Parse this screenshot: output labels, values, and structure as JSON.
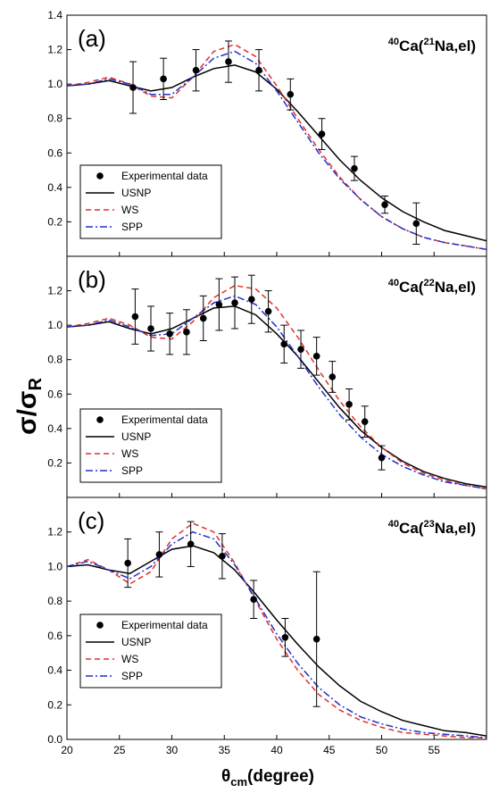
{
  "figure": {
    "ylabel": "σ/σR",
    "xlabel": "θcm(degree)"
  },
  "chart_data": [
    {
      "type": "line",
      "panel_label": "(a)",
      "title": "40Ca(21Na,el)",
      "xlim": [
        20,
        60
      ],
      "ylim": [
        0.0,
        1.4
      ],
      "xticks": [
        20,
        25,
        30,
        35,
        40,
        45,
        50,
        55
      ],
      "yticks": [
        0.2,
        0.4,
        0.6,
        0.8,
        1.0,
        1.2,
        1.4
      ],
      "legend": [
        "Experimental data",
        "USNP",
        "WS",
        "SPP"
      ],
      "experimental": {
        "name": "Experimental data",
        "x": [
          26.3,
          29.2,
          32.3,
          35.4,
          38.3,
          41.3,
          44.3,
          47.4,
          50.3,
          53.3
        ],
        "y": [
          0.98,
          1.03,
          1.08,
          1.13,
          1.08,
          0.94,
          0.71,
          0.51,
          0.3,
          0.19
        ],
        "err": [
          0.15,
          0.12,
          0.12,
          0.12,
          0.12,
          0.09,
          0.09,
          0.07,
          0.05,
          0.12
        ]
      },
      "series": [
        {
          "name": "USNP",
          "color": "#000000",
          "style": "solid",
          "x": [
            20,
            22,
            24,
            26,
            28,
            30,
            32,
            34,
            36,
            38,
            40,
            42,
            44,
            46,
            48,
            50,
            52,
            54,
            56,
            58,
            60
          ],
          "y": [
            0.99,
            1.0,
            1.02,
            0.99,
            0.96,
            0.98,
            1.04,
            1.09,
            1.11,
            1.07,
            0.97,
            0.84,
            0.7,
            0.56,
            0.44,
            0.34,
            0.26,
            0.2,
            0.15,
            0.12,
            0.09
          ]
        },
        {
          "name": "WS",
          "color": "#e0302a",
          "style": "dash",
          "x": [
            20,
            22,
            24,
            26,
            28,
            30,
            32,
            34,
            36,
            38,
            40,
            42,
            44,
            46,
            48,
            50,
            52,
            54,
            56,
            58,
            60
          ],
          "y": [
            0.99,
            1.01,
            1.04,
            1.0,
            0.93,
            0.92,
            1.04,
            1.19,
            1.23,
            1.16,
            0.99,
            0.8,
            0.62,
            0.46,
            0.33,
            0.23,
            0.16,
            0.11,
            0.08,
            0.06,
            0.04
          ]
        },
        {
          "name": "SPP",
          "color": "#2230c8",
          "style": "dashdot",
          "x": [
            20,
            22,
            24,
            26,
            28,
            30,
            32,
            34,
            36,
            38,
            40,
            42,
            44,
            46,
            48,
            50,
            52,
            54,
            56,
            58,
            60
          ],
          "y": [
            0.99,
            1.0,
            1.03,
            1.0,
            0.94,
            0.94,
            1.04,
            1.15,
            1.19,
            1.12,
            0.96,
            0.78,
            0.6,
            0.45,
            0.33,
            0.23,
            0.16,
            0.11,
            0.08,
            0.06,
            0.04
          ]
        }
      ]
    },
    {
      "type": "line",
      "panel_label": "(b)",
      "title": "40Ca(22Na,el)",
      "xlim": [
        20,
        60
      ],
      "ylim": [
        0.0,
        1.4
      ],
      "xticks": [
        20,
        25,
        30,
        35,
        40,
        45,
        50,
        55
      ],
      "yticks": [
        0.2,
        0.4,
        0.6,
        0.8,
        1.0,
        1.2
      ],
      "legend": [
        "Experimental data",
        "USNP",
        "WS",
        "SPP"
      ],
      "experimental": {
        "name": "Experimental data",
        "x": [
          26.5,
          28.0,
          29.8,
          31.4,
          33.0,
          34.5,
          36.0,
          37.6,
          39.2,
          40.7,
          42.3,
          43.8,
          45.3,
          46.9,
          48.4,
          50.0
        ],
        "y": [
          1.05,
          0.98,
          0.95,
          0.96,
          1.04,
          1.12,
          1.13,
          1.15,
          1.08,
          0.89,
          0.86,
          0.82,
          0.7,
          0.54,
          0.44,
          0.23
        ],
        "err": [
          0.16,
          0.13,
          0.12,
          0.13,
          0.13,
          0.15,
          0.15,
          0.14,
          0.12,
          0.11,
          0.11,
          0.11,
          0.09,
          0.09,
          0.09,
          0.07
        ]
      },
      "series": [
        {
          "name": "USNP",
          "color": "#000000",
          "style": "solid",
          "x": [
            20,
            22,
            24,
            26,
            28,
            30,
            32,
            34,
            36,
            38,
            40,
            42,
            44,
            46,
            48,
            50,
            52,
            54,
            56,
            58,
            60
          ],
          "y": [
            0.99,
            1.0,
            1.02,
            0.98,
            0.95,
            0.98,
            1.04,
            1.1,
            1.11,
            1.06,
            0.95,
            0.82,
            0.67,
            0.52,
            0.39,
            0.29,
            0.21,
            0.15,
            0.11,
            0.08,
            0.06
          ]
        },
        {
          "name": "WS",
          "color": "#e0302a",
          "style": "dash",
          "x": [
            20,
            22,
            24,
            26,
            28,
            30,
            32,
            34,
            36,
            38,
            40,
            42,
            44,
            46,
            48,
            50,
            52,
            54,
            56,
            58,
            60
          ],
          "y": [
            0.99,
            1.01,
            1.04,
            1.0,
            0.93,
            0.92,
            1.02,
            1.16,
            1.23,
            1.21,
            1.1,
            0.93,
            0.74,
            0.56,
            0.41,
            0.29,
            0.2,
            0.14,
            0.1,
            0.07,
            0.05
          ]
        },
        {
          "name": "SPP",
          "color": "#2230c8",
          "style": "dashdot",
          "x": [
            20,
            22,
            24,
            26,
            28,
            30,
            32,
            34,
            36,
            38,
            40,
            42,
            44,
            46,
            48,
            50,
            52,
            54,
            56,
            58,
            60
          ],
          "y": [
            0.99,
            1.0,
            1.03,
            0.99,
            0.94,
            0.95,
            1.04,
            1.13,
            1.17,
            1.12,
            0.99,
            0.82,
            0.64,
            0.48,
            0.35,
            0.25,
            0.18,
            0.13,
            0.09,
            0.07,
            0.05
          ]
        }
      ]
    },
    {
      "type": "line",
      "panel_label": "(c)",
      "title": "40Ca(23Na,el)",
      "xlim": [
        20,
        60
      ],
      "ylim": [
        0.0,
        1.4
      ],
      "xticks": [
        20,
        25,
        30,
        35,
        40,
        45,
        50,
        55
      ],
      "xticklabels": [
        "20",
        "25",
        "30",
        "35",
        "40",
        "45",
        "50",
        "55"
      ],
      "yticks": [
        0.0,
        0.2,
        0.4,
        0.6,
        0.8,
        1.0,
        1.2
      ],
      "legend": [
        "Experimental data",
        "USNP",
        "WS",
        "SPP"
      ],
      "experimental": {
        "name": "Experimental data",
        "x": [
          25.8,
          28.8,
          31.8,
          34.8,
          37.8,
          40.8,
          43.8
        ],
        "y": [
          1.02,
          1.07,
          1.13,
          1.06,
          0.81,
          0.59,
          0.58
        ],
        "err": [
          0.14,
          0.13,
          0.13,
          0.13,
          0.11,
          0.11,
          0.39
        ]
      },
      "series": [
        {
          "name": "USNP",
          "color": "#000000",
          "style": "solid",
          "x": [
            20,
            22,
            24,
            26,
            28,
            30,
            32,
            34,
            36,
            38,
            40,
            42,
            44,
            46,
            48,
            50,
            52,
            54,
            56,
            58,
            60
          ],
          "y": [
            1.0,
            1.01,
            0.98,
            0.96,
            1.03,
            1.1,
            1.12,
            1.08,
            0.98,
            0.84,
            0.69,
            0.55,
            0.42,
            0.31,
            0.22,
            0.16,
            0.11,
            0.08,
            0.05,
            0.04,
            0.02
          ]
        },
        {
          "name": "WS",
          "color": "#e0302a",
          "style": "dash",
          "x": [
            20,
            22,
            24,
            26,
            28,
            30,
            32,
            34,
            36,
            38,
            40,
            42,
            44,
            46,
            48,
            50,
            52,
            54,
            56,
            58,
            60
          ],
          "y": [
            1.0,
            1.04,
            0.98,
            0.9,
            0.97,
            1.16,
            1.25,
            1.2,
            1.02,
            0.8,
            0.58,
            0.4,
            0.26,
            0.17,
            0.11,
            0.07,
            0.04,
            0.03,
            0.02,
            0.01,
            0.01
          ]
        },
        {
          "name": "SPP",
          "color": "#2230c8",
          "style": "dashdot",
          "x": [
            20,
            22,
            24,
            26,
            28,
            30,
            32,
            34,
            36,
            38,
            40,
            42,
            44,
            46,
            48,
            50,
            52,
            54,
            56,
            58,
            60
          ],
          "y": [
            1.0,
            1.03,
            0.98,
            0.93,
            1.0,
            1.13,
            1.2,
            1.16,
            1.01,
            0.81,
            0.61,
            0.44,
            0.3,
            0.2,
            0.13,
            0.09,
            0.06,
            0.04,
            0.03,
            0.02,
            0.01
          ]
        }
      ]
    }
  ]
}
